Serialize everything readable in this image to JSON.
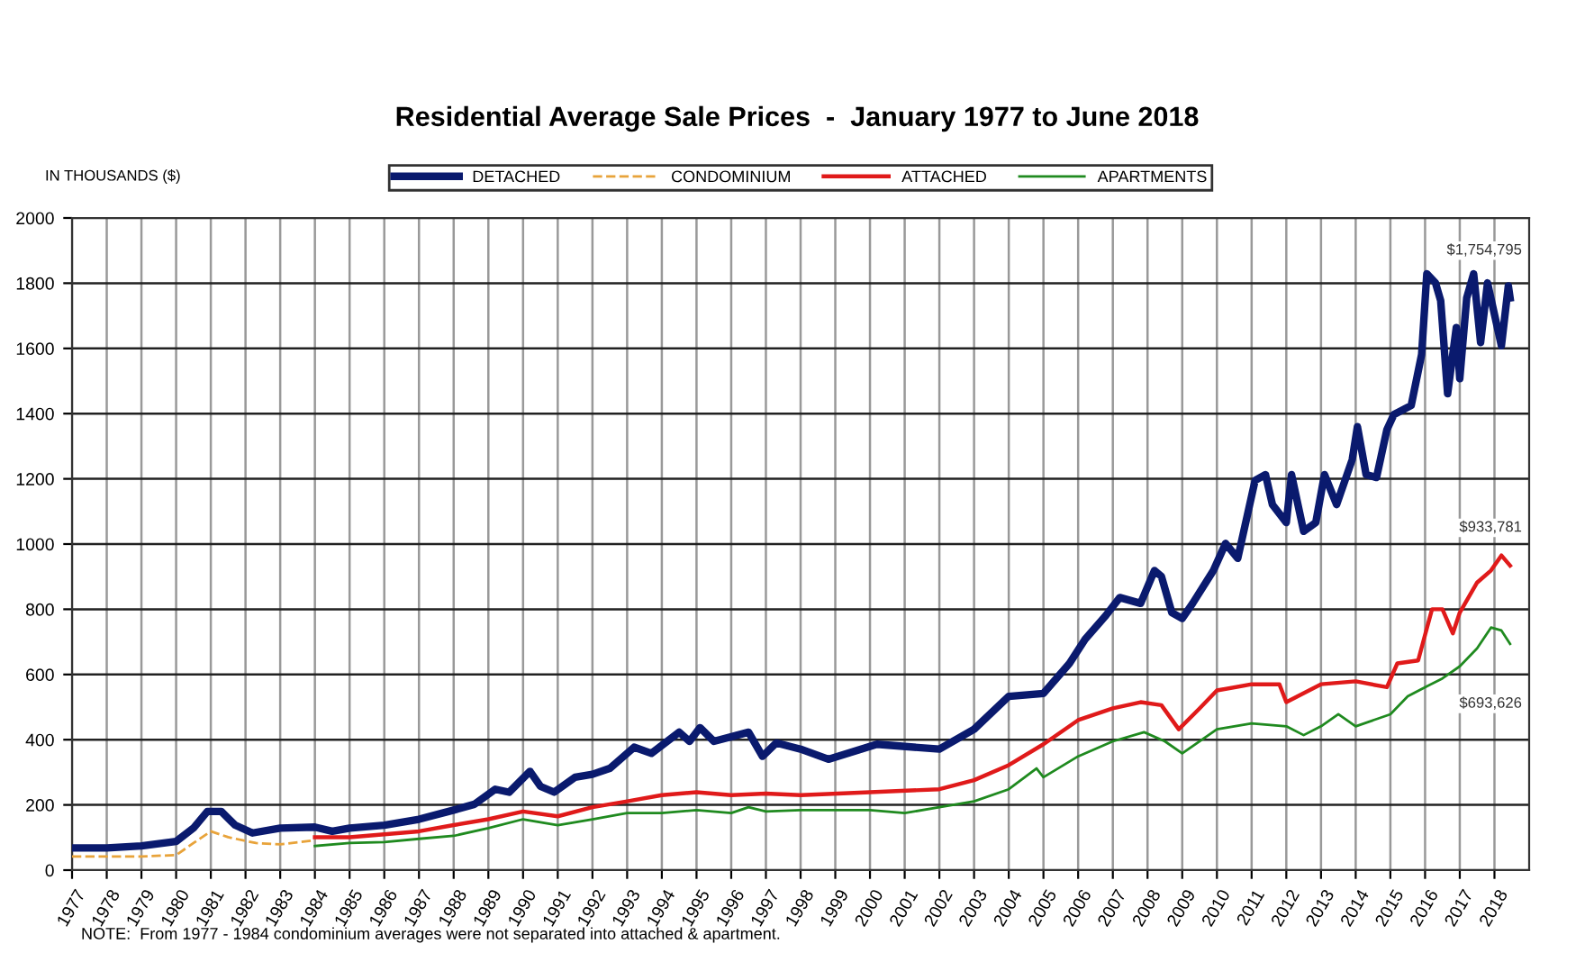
{
  "chart_data": {
    "type": "line",
    "title": "Residential Average Sale Prices  -  January 1977 to June 2018",
    "ylabel": "IN THOUSANDS ($)",
    "xlim": [
      1977,
      2019
    ],
    "xticks": [
      1977,
      1978,
      1979,
      1980,
      1981,
      1982,
      1983,
      1984,
      1985,
      1986,
      1987,
      1988,
      1989,
      1990,
      1991,
      1992,
      1993,
      1994,
      1995,
      1996,
      1997,
      1998,
      1999,
      2000,
      2001,
      2002,
      2003,
      2004,
      2005,
      2006,
      2007,
      2008,
      2009,
      2010,
      2011,
      2012,
      2013,
      2014,
      2015,
      2016,
      2017,
      2018
    ],
    "ylim": [
      0,
      2000
    ],
    "yticks": [
      0,
      200,
      400,
      600,
      800,
      1000,
      1200,
      1400,
      1600,
      1800,
      2000
    ],
    "grid": true,
    "legend": "top",
    "marker": "none",
    "series": [
      {
        "name": "DETACHED",
        "color": "#0a1a6e",
        "line_style": "solid",
        "x": [
          1977,
          1978,
          1979,
          1980,
          1980.5,
          1980.9,
          1981.3,
          1981.7,
          1982.2,
          1983,
          1984,
          1984.5,
          1985,
          1986,
          1987,
          1988,
          1988.6,
          1989.2,
          1989.6,
          1990.2,
          1990.5,
          1990.9,
          1991.5,
          1992,
          1992.5,
          1993.2,
          1993.7,
          1994.5,
          1994.8,
          1995.1,
          1995.5,
          1996.5,
          1996.9,
          1997.3,
          1998,
          1998.8,
          2000.2,
          2002,
          2003,
          2004,
          2005,
          2005.75,
          2006.2,
          2006.8,
          2007.2,
          2007.8,
          2008.2,
          2008.4,
          2008.7,
          2009,
          2009.3,
          2009.9,
          2010.25,
          2010.6,
          2011.1,
          2011.4,
          2011.6,
          2012,
          2012.15,
          2012.5,
          2012.85,
          2013.1,
          2013.45,
          2013.9,
          2014.05,
          2014.3,
          2014.6,
          2014.9,
          2015.1,
          2015.6,
          2015.9,
          2016.05,
          2016.3,
          2016.45,
          2016.65,
          2016.9,
          2017,
          2017.2,
          2017.4,
          2017.6,
          2017.8,
          2017.95,
          2018.2,
          2018.4,
          2018.45
        ],
        "values": [
          68,
          68,
          74,
          88,
          129,
          180,
          180,
          138,
          114,
          129,
          132,
          119,
          129,
          138,
          156,
          184,
          202,
          248,
          239,
          303,
          257,
          239,
          285,
          294,
          312,
          377,
          358,
          423,
          395,
          437,
          395,
          423,
          349,
          390,
          371,
          340,
          386,
          371,
          432,
          533,
          542,
          634,
          708,
          781,
          836,
          818,
          919,
          901,
          790,
          772,
          818,
          919,
          1002,
          956,
          1195,
          1213,
          1121,
          1066,
          1213,
          1039,
          1066,
          1213,
          1121,
          1259,
          1360,
          1213,
          1204,
          1351,
          1397,
          1425,
          1581,
          1829,
          1801,
          1746,
          1461,
          1664,
          1507,
          1755,
          1829,
          1618,
          1801,
          1728,
          1608,
          1792,
          1755
        ]
      },
      {
        "name": "CONDOMINIUM",
        "color": "#e8a33a",
        "line_style": "dashed",
        "x": [
          1977,
          1979,
          1980,
          1980.5,
          1981,
          1981.5,
          1982.3,
          1983,
          1984
        ],
        "values": [
          42,
          42,
          46,
          83,
          119,
          101,
          83,
          79,
          92
        ]
      },
      {
        "name": "ATTACHED",
        "color": "#e01a1a",
        "line_style": "solid",
        "x": [
          1984,
          1985,
          1986,
          1987,
          1988,
          1989,
          1990,
          1991,
          1992,
          1993,
          1994,
          1995,
          1996,
          1997,
          1998,
          2000,
          2002,
          2003,
          2004,
          2005,
          2006,
          2007,
          2007.8,
          2008.4,
          2008.9,
          2009.5,
          2010,
          2011,
          2011.8,
          2012,
          2013,
          2014,
          2014.9,
          2015.2,
          2015.8,
          2016.2,
          2016.5,
          2016.8,
          2017,
          2017.5,
          2017.9,
          2018.2,
          2018.45
        ],
        "values": [
          101,
          101,
          110,
          119,
          138,
          156,
          180,
          165,
          193,
          211,
          230,
          239,
          230,
          235,
          230,
          239,
          248,
          276,
          322,
          386,
          460,
          496,
          515,
          506,
          432,
          496,
          551,
          570,
          570,
          515,
          570,
          579,
          561,
          634,
          643,
          800,
          800,
          726,
          790,
          882,
          919,
          965,
          934
        ]
      },
      {
        "name": "APARTMENTS",
        "color": "#1f8a1f",
        "line_style": "solid",
        "x": [
          1984,
          1985,
          1986,
          1987,
          1988,
          1989,
          1990,
          1991,
          1992,
          1993,
          1994,
          1995,
          1996,
          1996.5,
          1997,
          1998,
          2000,
          2001,
          2002,
          2003,
          2004,
          2004.8,
          2005,
          2006,
          2007,
          2007.9,
          2008.5,
          2009,
          2010,
          2011,
          2012,
          2012.5,
          2013,
          2013.5,
          2014,
          2015,
          2015.5,
          2016,
          2016.5,
          2017,
          2017.5,
          2017.9,
          2018.2,
          2018.45
        ],
        "values": [
          74,
          83,
          86,
          96,
          105,
          129,
          156,
          138,
          156,
          175,
          175,
          184,
          175,
          193,
          180,
          184,
          184,
          175,
          193,
          211,
          248,
          312,
          285,
          349,
          395,
          423,
          395,
          358,
          432,
          450,
          441,
          414,
          441,
          478,
          441,
          478,
          533,
          561,
          588,
          625,
          680,
          744,
          735,
          694
        ]
      }
    ],
    "annotations": [
      "$1,754,795",
      "$933,781",
      "$693,626",
      "NOTE:  From 1977 - 1984 condominium averages were not separated into attached & apartment."
    ]
  }
}
